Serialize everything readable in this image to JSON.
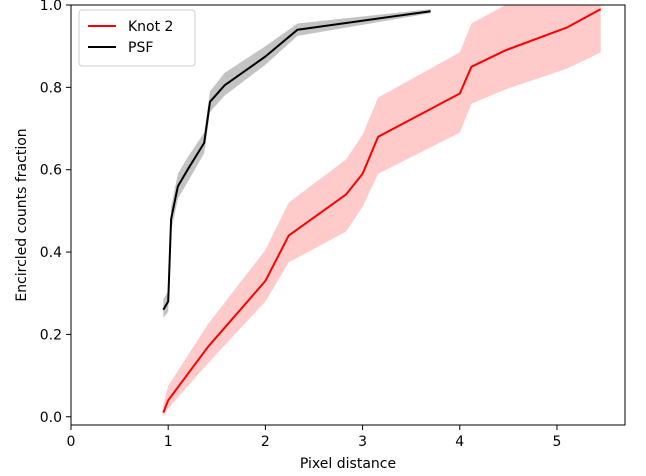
{
  "chart_data": {
    "type": "line",
    "title": "",
    "xlabel": "Pixel distance",
    "ylabel": "Encircled counts fraction",
    "xlim": [
      0,
      5.7
    ],
    "ylim": [
      -0.02,
      1.0
    ],
    "xticks": [
      0,
      1,
      2,
      3,
      4,
      5
    ],
    "yticks": [
      0.0,
      0.2,
      0.4,
      0.6,
      0.8,
      1.0
    ],
    "xtick_labels": [
      "0",
      "1",
      "2",
      "3",
      "4",
      "5"
    ],
    "ytick_labels": [
      "0.0",
      "0.2",
      "0.4",
      "0.6",
      "0.8",
      "1.0"
    ],
    "grid": false,
    "legend_position": "top-left",
    "series": [
      {
        "name": "Knot 2",
        "color": "#ff0000",
        "band_color": "#ffb3b3",
        "x": [
          0.95,
          1.0,
          1.41,
          2.0,
          2.24,
          2.83,
          3.0,
          3.16,
          4.0,
          4.12,
          4.47,
          5.1,
          5.45
        ],
        "y": [
          0.01,
          0.04,
          0.17,
          0.33,
          0.44,
          0.54,
          0.59,
          0.68,
          0.785,
          0.85,
          0.89,
          0.945,
          0.99
        ],
        "y_lower": [
          0.0,
          0.02,
          0.13,
          0.28,
          0.375,
          0.45,
          0.51,
          0.59,
          0.69,
          0.76,
          0.795,
          0.845,
          0.885
        ],
        "y_upper": [
          0.03,
          0.075,
          0.225,
          0.405,
          0.52,
          0.625,
          0.685,
          0.775,
          0.885,
          0.955,
          1.0,
          1.0,
          1.0
        ]
      },
      {
        "name": "PSF",
        "color": "#000000",
        "band_color": "#a9a9a9",
        "x": [
          0.95,
          1.0,
          1.03,
          1.1,
          1.2,
          1.37,
          1.43,
          1.58,
          2.0,
          2.33,
          3.7
        ],
        "y": [
          0.26,
          0.28,
          0.48,
          0.56,
          0.6,
          0.665,
          0.765,
          0.805,
          0.875,
          0.94,
          0.985
        ],
        "y_lower": [
          0.24,
          0.255,
          0.45,
          0.53,
          0.57,
          0.64,
          0.74,
          0.78,
          0.855,
          0.925,
          0.98
        ],
        "y_upper": [
          0.285,
          0.305,
          0.51,
          0.59,
          0.63,
          0.69,
          0.79,
          0.835,
          0.9,
          0.955,
          0.99
        ]
      }
    ]
  }
}
